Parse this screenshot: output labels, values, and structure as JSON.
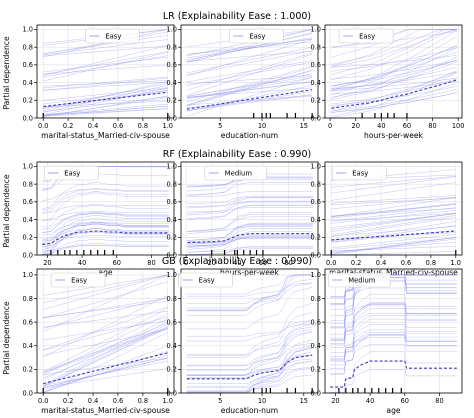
{
  "figure": {
    "rows": [
      {
        "title": "LR (Explainability Ease : 1.000)",
        "ylabel": "Partial dependence",
        "panels": [
          {
            "xlabel": "marital-status_Married-civ-spouse",
            "legend": "Easy"
          },
          {
            "xlabel": "education-num",
            "legend": "Easy"
          },
          {
            "xlabel": "hours-per-week",
            "legend": "Easy"
          }
        ]
      },
      {
        "title": "RF (Explainability Ease : 0.990)",
        "ylabel": "Partial dependence",
        "panels": [
          {
            "xlabel": "age",
            "legend": "Easy"
          },
          {
            "xlabel": "hours-per-week",
            "legend": "Medium"
          },
          {
            "xlabel": "marital-status_Married-civ-spouse",
            "legend": "Easy"
          }
        ]
      },
      {
        "title": "GB (Explainability Ease : 0.990)",
        "ylabel": "Partial dependence",
        "panels": [
          {
            "xlabel": "marital-status_Married-civ-spouse",
            "legend": "Easy"
          },
          {
            "xlabel": "education-num",
            "legend": "Easy"
          },
          {
            "xlabel": "age",
            "legend": "Medium"
          }
        ]
      }
    ]
  },
  "colors": {
    "ice_line": "#8c8cf0",
    "pd_line": "#3b3bb3",
    "rug": "#000000",
    "frame": "#000000"
  },
  "chart_data": [
    {
      "type": "line",
      "model": "LR",
      "xlabel": "marital-status_Married-civ-spouse",
      "ylabel": "Partial dependence",
      "legend": "Easy",
      "xlim": [
        -0.05,
        1.05
      ],
      "ylim": [
        0,
        1.05
      ],
      "xticks": [
        "0.0",
        "0.2",
        "0.4",
        "0.6",
        "0.8",
        "1.0"
      ],
      "yticks": [
        "0.0",
        "0.2",
        "0.4",
        "0.6",
        "0.8",
        "1.0"
      ],
      "pd": {
        "x": [
          0,
          1
        ],
        "y": [
          0.13,
          0.29
        ]
      },
      "rug": [
        0,
        1
      ]
    },
    {
      "type": "line",
      "model": "LR",
      "xlabel": "education-num",
      "ylabel": "Partial dependence",
      "legend": "Easy",
      "xlim": [
        0.3,
        16.7
      ],
      "ylim": [
        0,
        1.05
      ],
      "xticks": [
        "5",
        "10",
        "15"
      ],
      "yticks": [
        "0.0",
        "0.2",
        "0.4",
        "0.6",
        "0.8",
        "1.0"
      ],
      "pd": {
        "x": [
          1,
          16
        ],
        "y": [
          0.1,
          0.32
        ]
      },
      "rug": [
        9,
        10,
        10.5,
        11,
        13,
        14,
        16
      ]
    },
    {
      "type": "line",
      "model": "LR",
      "xlabel": "hours-per-week",
      "ylabel": "Partial dependence",
      "legend": "Easy",
      "xlim": [
        -4,
        103
      ],
      "ylim": [
        0,
        1.05
      ],
      "xticks": [
        "0",
        "20",
        "40",
        "60",
        "80",
        "100"
      ],
      "yticks": [
        "0.0",
        "0.2",
        "0.4",
        "0.6",
        "0.8",
        "1.0"
      ],
      "pd": {
        "x": [
          1,
          10,
          20,
          30,
          40,
          50,
          60,
          70,
          80,
          90,
          99
        ],
        "y": [
          0.11,
          0.13,
          0.15,
          0.17,
          0.2,
          0.24,
          0.27,
          0.31,
          0.35,
          0.39,
          0.43
        ]
      },
      "rug": [
        25,
        35,
        40,
        45,
        50,
        60
      ]
    },
    {
      "type": "line",
      "model": "RF",
      "xlabel": "age",
      "ylabel": "Partial dependence",
      "legend": "Easy",
      "xlim": [
        14,
        93
      ],
      "ylim": [
        0,
        1.05
      ],
      "xticks": [
        "20",
        "40",
        "60",
        "80"
      ],
      "yticks": [
        "0.0",
        "0.2",
        "0.4",
        "0.6",
        "0.8",
        "1.0"
      ],
      "pd": {
        "x": [
          17,
          22,
          26,
          30,
          34,
          38,
          42,
          46,
          50,
          55,
          60,
          65,
          70,
          80,
          90
        ],
        "y": [
          0.12,
          0.13,
          0.18,
          0.22,
          0.24,
          0.26,
          0.26,
          0.27,
          0.27,
          0.26,
          0.26,
          0.25,
          0.25,
          0.25,
          0.25
        ]
      },
      "rug": [
        22,
        26,
        30,
        33,
        37,
        41,
        45,
        49,
        53,
        58
      ]
    },
    {
      "type": "line",
      "model": "RF",
      "xlabel": "hours-per-week",
      "ylabel": "Partial dependence",
      "legend": "Medium",
      "xlim": [
        -4,
        103
      ],
      "ylim": [
        0,
        1.05
      ],
      "xticks": [
        "0",
        "20",
        "40",
        "60",
        "80"
      ],
      "yticks": [
        "0.0",
        "0.2",
        "0.4",
        "0.6",
        "0.8",
        "1.0"
      ],
      "pd": {
        "x": [
          1,
          20,
          30,
          35,
          40,
          45,
          50,
          60,
          70,
          80,
          99
        ],
        "y": [
          0.14,
          0.15,
          0.16,
          0.19,
          0.22,
          0.23,
          0.24,
          0.24,
          0.24,
          0.24,
          0.24
        ]
      },
      "rug": [
        20,
        30,
        38,
        40,
        45,
        50,
        55,
        60
      ]
    },
    {
      "type": "line",
      "model": "RF",
      "xlabel": "marital-status_Married-civ-spouse",
      "ylabel": "Partial dependence",
      "legend": "Easy",
      "xlim": [
        -0.05,
        1.05
      ],
      "ylim": [
        0,
        1.05
      ],
      "xticks": [
        "0.0",
        "0.2",
        "0.4",
        "0.6",
        "0.8",
        "1.0"
      ],
      "yticks": [
        "0.0",
        "0.2",
        "0.4",
        "0.6",
        "0.8",
        "1.0"
      ],
      "pd": {
        "x": [
          0,
          1
        ],
        "y": [
          0.17,
          0.27
        ]
      },
      "rug": [
        0,
        1
      ]
    },
    {
      "type": "line",
      "model": "GB",
      "xlabel": "marital-status_Married-civ-spouse",
      "ylabel": "Partial dependence",
      "legend": "Easy",
      "xlim": [
        -0.05,
        1.05
      ],
      "ylim": [
        0,
        1.05
      ],
      "xticks": [
        "0.0",
        "0.2",
        "0.4",
        "0.6",
        "0.8",
        "1.0"
      ],
      "yticks": [
        "0.0",
        "0.2",
        "0.4",
        "0.6",
        "0.8",
        "1.0"
      ],
      "pd": {
        "x": [
          0,
          1
        ],
        "y": [
          0.08,
          0.34
        ]
      },
      "rug": [
        0,
        1
      ]
    },
    {
      "type": "line",
      "model": "GB",
      "xlabel": "education-num",
      "ylabel": "Partial dependence",
      "legend": "Easy",
      "xlim": [
        0.3,
        16.7
      ],
      "ylim": [
        0,
        1.05
      ],
      "xticks": [
        "5",
        "10",
        "15"
      ],
      "yticks": [
        "0.0",
        "0.2",
        "0.4",
        "0.6",
        "0.8",
        "1.0"
      ],
      "pd": {
        "x": [
          1,
          8,
          8.5,
          9,
          10,
          11,
          12,
          12.5,
          13,
          14,
          15,
          16
        ],
        "y": [
          0.12,
          0.12,
          0.13,
          0.15,
          0.17,
          0.18,
          0.19,
          0.22,
          0.26,
          0.3,
          0.31,
          0.32
        ]
      },
      "rug": [
        9,
        10,
        10.5,
        11,
        13,
        14,
        16
      ]
    },
    {
      "type": "line",
      "model": "GB",
      "xlabel": "age",
      "ylabel": "Partial dependence",
      "legend": "Medium",
      "xlim": [
        14,
        93
      ],
      "ylim": [
        0,
        1.05
      ],
      "xticks": [
        "20",
        "40",
        "60",
        "80"
      ],
      "yticks": [
        "0.0",
        "0.2",
        "0.4",
        "0.6",
        "0.8",
        "1.0"
      ],
      "pd": {
        "x": [
          17,
          25,
          26,
          30,
          31,
          35,
          40,
          45,
          50,
          55,
          60,
          61,
          70,
          80,
          90
        ],
        "y": [
          0.05,
          0.05,
          0.12,
          0.13,
          0.2,
          0.24,
          0.27,
          0.27,
          0.27,
          0.27,
          0.27,
          0.21,
          0.21,
          0.21,
          0.21
        ]
      },
      "rug": [
        22,
        26,
        30,
        33,
        37,
        41,
        45,
        49,
        53,
        58
      ]
    }
  ]
}
